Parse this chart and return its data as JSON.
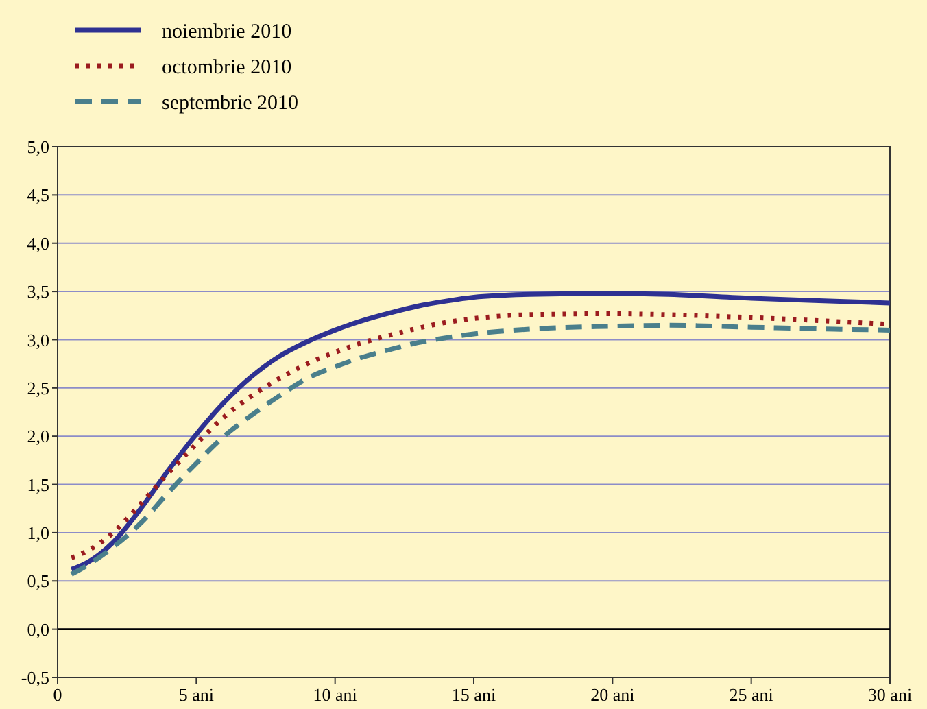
{
  "chart_data": {
    "type": "line",
    "x": [
      0.5,
      1,
      2,
      3,
      4,
      5,
      6,
      7,
      8,
      9,
      10,
      11,
      12,
      13,
      14,
      15,
      17,
      20,
      22,
      25,
      28,
      30
    ],
    "series": [
      {
        "name": "noiembrie 2010",
        "color": "#2e3192",
        "line_style": "solid",
        "values": [
          0.62,
          0.68,
          0.9,
          1.25,
          1.65,
          2.02,
          2.35,
          2.62,
          2.83,
          2.98,
          3.1,
          3.2,
          3.28,
          3.35,
          3.4,
          3.44,
          3.47,
          3.48,
          3.47,
          3.43,
          3.4,
          3.38
        ]
      },
      {
        "name": "octombrie 2010",
        "color": "#9b1c1f",
        "line_style": "dotted",
        "values": [
          0.74,
          0.8,
          1.0,
          1.3,
          1.62,
          1.92,
          2.2,
          2.42,
          2.6,
          2.75,
          2.87,
          2.97,
          3.05,
          3.12,
          3.18,
          3.22,
          3.26,
          3.27,
          3.26,
          3.23,
          3.19,
          3.16
        ]
      },
      {
        "name": "septembrie 2010",
        "color": "#4a7f8c",
        "line_style": "dashed",
        "values": [
          0.57,
          0.65,
          0.85,
          1.1,
          1.42,
          1.72,
          2.0,
          2.22,
          2.42,
          2.6,
          2.72,
          2.82,
          2.9,
          2.97,
          3.02,
          3.06,
          3.11,
          3.14,
          3.15,
          3.13,
          3.11,
          3.1
        ]
      }
    ],
    "xlim": [
      0,
      30
    ],
    "xticks": [
      0,
      {
        "value": 5,
        "label": "5 ani"
      },
      {
        "value": 10,
        "label": "10 ani"
      },
      {
        "value": 15,
        "label": "15 ani"
      },
      {
        "value": 20,
        "label": "20 ani"
      },
      {
        "value": 25,
        "label": "25 ani"
      },
      {
        "value": 30,
        "label": "30 ani"
      }
    ],
    "ylim": [
      -0.5,
      5
    ],
    "yticks": [
      {
        "value": -0.5,
        "label": "-0,5"
      },
      {
        "value": 0,
        "label": "0,0"
      },
      {
        "value": 0.5,
        "label": "0,5"
      },
      {
        "value": 1,
        "label": "1,0"
      },
      {
        "value": 1.5,
        "label": "1,5"
      },
      {
        "value": 2,
        "label": "2,0"
      },
      {
        "value": 2.5,
        "label": "2,5"
      },
      {
        "value": 3,
        "label": "3,0"
      },
      {
        "value": 3.5,
        "label": "3,5"
      },
      {
        "value": 4,
        "label": "4,0"
      },
      {
        "value": 4.5,
        "label": "4,5"
      },
      {
        "value": 5,
        "label": "5,0"
      }
    ],
    "ref_lines": [
      {
        "axis": "y",
        "value": 0,
        "color": "#000000"
      }
    ],
    "grid": "y",
    "legend": "top left",
    "marker": "none"
  }
}
